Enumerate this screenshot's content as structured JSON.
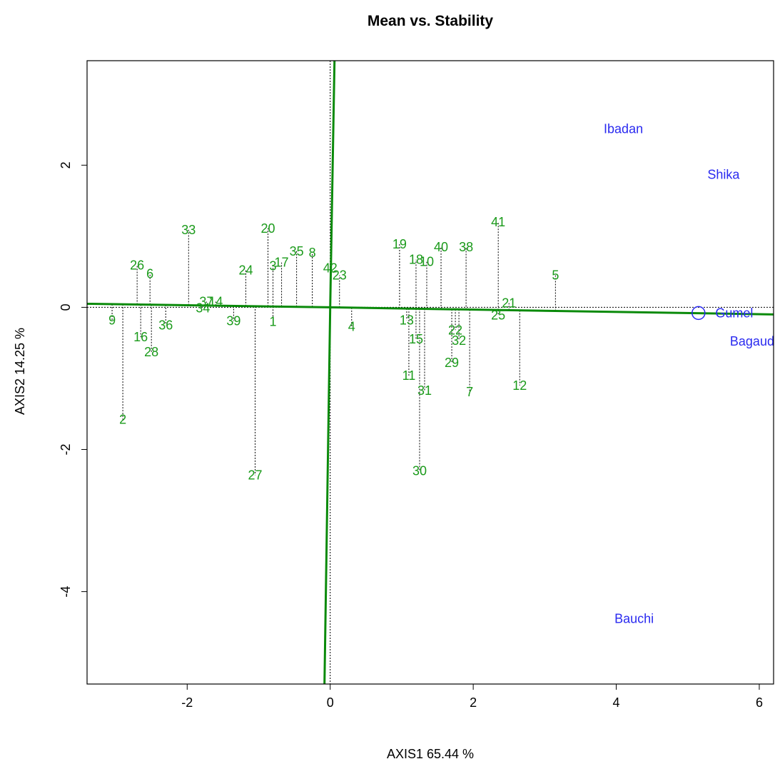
{
  "chart_data": {
    "type": "scatter",
    "title": "Mean vs. Stability",
    "xlabel": "AXIS1 65.44 %",
    "ylabel": "AXIS2 14.25 %",
    "xlim": [
      -3.4,
      6.2
    ],
    "ylim": [
      -5.3,
      3.47
    ],
    "x_ticks": [
      -2,
      0,
      2,
      4,
      6
    ],
    "y_ticks": [
      -4,
      -2,
      0,
      2
    ],
    "colors": {
      "genotype": "#1a9a1a",
      "environment": "#2a2af0",
      "ref_line": "#000000",
      "aec_line": "#0a8a0a"
    },
    "aec_abscissa": [
      [
        -3.4,
        0.05
      ],
      [
        0,
        0
      ],
      [
        6.2,
        -0.1
      ]
    ],
    "aec_ordinate": [
      [
        0.06,
        3.47
      ],
      [
        0,
        0
      ],
      [
        -0.08,
        -5.3
      ]
    ],
    "genotypes": [
      {
        "label": "1",
        "x": -0.8,
        "y": -0.2
      },
      {
        "label": "2",
        "x": -2.9,
        "y": -1.58
      },
      {
        "label": "3",
        "x": -0.8,
        "y": 0.58
      },
      {
        "label": "4",
        "x": 0.3,
        "y": -0.27
      },
      {
        "label": "5",
        "x": 3.15,
        "y": 0.45
      },
      {
        "label": "6",
        "x": -2.52,
        "y": 0.47
      },
      {
        "label": "7",
        "x": 1.95,
        "y": -1.19
      },
      {
        "label": "8",
        "x": -0.25,
        "y": 0.77
      },
      {
        "label": "9",
        "x": -3.05,
        "y": -0.18
      },
      {
        "label": "10",
        "x": 1.35,
        "y": 0.64
      },
      {
        "label": "11",
        "x": 1.1,
        "y": -0.96
      },
      {
        "label": "12",
        "x": 2.65,
        "y": -1.1
      },
      {
        "label": "13",
        "x": 1.07,
        "y": -0.18
      },
      {
        "label": "14",
        "x": -1.6,
        "y": 0.08
      },
      {
        "label": "15",
        "x": 1.2,
        "y": -0.45
      },
      {
        "label": "16",
        "x": -2.65,
        "y": -0.42
      },
      {
        "label": "17",
        "x": -0.68,
        "y": 0.63
      },
      {
        "label": "18",
        "x": 1.2,
        "y": 0.67
      },
      {
        "label": "19",
        "x": 0.97,
        "y": 0.89
      },
      {
        "label": "20",
        "x": -0.87,
        "y": 1.11
      },
      {
        "label": "21",
        "x": 2.5,
        "y": 0.06
      },
      {
        "label": "22",
        "x": 1.75,
        "y": -0.32
      },
      {
        "label": "23",
        "x": 0.13,
        "y": 0.45
      },
      {
        "label": "24",
        "x": -1.18,
        "y": 0.52
      },
      {
        "label": "25",
        "x": 2.35,
        "y": -0.11
      },
      {
        "label": "26",
        "x": -2.7,
        "y": 0.59
      },
      {
        "label": "27",
        "x": -1.05,
        "y": -2.36
      },
      {
        "label": "28",
        "x": -2.5,
        "y": -0.63
      },
      {
        "label": "29",
        "x": 1.7,
        "y": -0.78
      },
      {
        "label": "30",
        "x": 1.25,
        "y": -2.3
      },
      {
        "label": "31",
        "x": 1.32,
        "y": -1.17
      },
      {
        "label": "32",
        "x": 1.8,
        "y": -0.47
      },
      {
        "label": "33",
        "x": -1.98,
        "y": 1.09
      },
      {
        "label": "34",
        "x": -1.78,
        "y": -0.01
      },
      {
        "label": "35",
        "x": -0.47,
        "y": 0.79
      },
      {
        "label": "36",
        "x": -2.3,
        "y": -0.25
      },
      {
        "label": "37",
        "x": -1.73,
        "y": 0.08
      },
      {
        "label": "38",
        "x": 1.9,
        "y": 0.85
      },
      {
        "label": "39",
        "x": -1.35,
        "y": -0.19
      },
      {
        "label": "40",
        "x": 1.55,
        "y": 0.85
      },
      {
        "label": "41",
        "x": 2.35,
        "y": 1.2
      },
      {
        "label": "42",
        "x": 0.0,
        "y": 0.55
      }
    ],
    "environments": [
      {
        "label": "Ibadan",
        "x": 4.1,
        "y": 2.51
      },
      {
        "label": "Shika",
        "x": 5.5,
        "y": 1.87
      },
      {
        "label": "Gumel",
        "x": 5.65,
        "y": -0.08
      },
      {
        "label": "Bagaud",
        "x": 5.9,
        "y": -0.48
      },
      {
        "label": "Bauchi",
        "x": 4.25,
        "y": -4.38
      }
    ],
    "average_environment": {
      "x": 5.15,
      "y": -0.08
    }
  }
}
